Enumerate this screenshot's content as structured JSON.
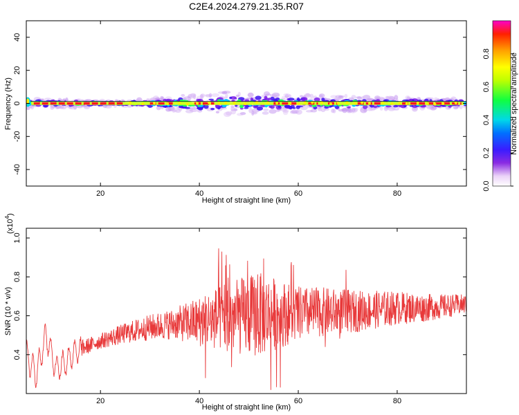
{
  "title": "C2E4.2024.279.21.35.R07",
  "colorbar": {
    "label": "Normalized spectral amplitude",
    "ticks": [
      "0.0",
      "0.2",
      "0.4",
      "0.6",
      "0.8"
    ],
    "tick_values": [
      0.0,
      0.2,
      0.4,
      0.6,
      0.8
    ],
    "range": [
      0,
      1
    ]
  },
  "chart_data": [
    {
      "type": "heatmap",
      "xlabel": "Height of straight line (km)",
      "ylabel": "Frequency (Hz)",
      "xlim": [
        5,
        94
      ],
      "ylim": [
        -50,
        50
      ],
      "xticks": [
        20,
        40,
        60,
        80
      ],
      "xtick_labels": [
        "20",
        "40",
        "60",
        "80"
      ],
      "yticks": [
        -40,
        -20,
        0,
        20,
        40
      ],
      "ytick_labels": [
        "-40",
        "-20",
        "0",
        "20",
        "40"
      ],
      "ridge_frequency_hz": 0,
      "spread_profile": [
        {
          "x": 5,
          "spread": 2.5
        },
        {
          "x": 25,
          "spread": 1.0
        },
        {
          "x": 35,
          "spread": 3.5
        },
        {
          "x": 45,
          "spread": 5.5
        },
        {
          "x": 55,
          "spread": 4.5
        },
        {
          "x": 70,
          "spread": 3.5
        },
        {
          "x": 94,
          "spread": 2.0
        }
      ]
    },
    {
      "type": "line",
      "xlabel": "Height of straight line (km)",
      "ylabel": "SNR (10 * v/v)",
      "scale_label": "(x10",
      "scale_exp": "4",
      "scale_close": ")",
      "xlim": [
        5,
        94
      ],
      "ylim": [
        0.2,
        1.05
      ],
      "xticks": [
        20,
        40,
        60,
        80
      ],
      "xtick_labels": [
        "20",
        "40",
        "60",
        "80"
      ],
      "yticks": [
        0.4,
        0.6,
        0.8,
        1.0
      ],
      "ytick_labels": [
        "0.4",
        "0.6",
        "0.8",
        "1.0"
      ],
      "series": [
        {
          "color": "#e8393a",
          "trend": [
            {
              "x": 5,
              "y": 0.4
            },
            {
              "x": 7,
              "y": 0.3
            },
            {
              "x": 9,
              "y": 0.5
            },
            {
              "x": 11,
              "y": 0.33
            },
            {
              "x": 13,
              "y": 0.36
            },
            {
              "x": 15,
              "y": 0.42
            },
            {
              "x": 20,
              "y": 0.47
            },
            {
              "x": 25,
              "y": 0.51
            },
            {
              "x": 30,
              "y": 0.54
            },
            {
              "x": 35,
              "y": 0.56
            },
            {
              "x": 40,
              "y": 0.57
            },
            {
              "x": 45,
              "y": 0.59
            },
            {
              "x": 50,
              "y": 0.6
            },
            {
              "x": 55,
              "y": 0.61
            },
            {
              "x": 60,
              "y": 0.61
            },
            {
              "x": 65,
              "y": 0.62
            },
            {
              "x": 70,
              "y": 0.62
            },
            {
              "x": 75,
              "y": 0.63
            },
            {
              "x": 80,
              "y": 0.64
            },
            {
              "x": 85,
              "y": 0.64
            },
            {
              "x": 90,
              "y": 0.65
            },
            {
              "x": 94,
              "y": 0.66
            }
          ],
          "noise_amplitude": [
            {
              "x": 5,
              "a": 0.05
            },
            {
              "x": 20,
              "a": 0.04
            },
            {
              "x": 35,
              "a": 0.08
            },
            {
              "x": 45,
              "a": 0.18
            },
            {
              "x": 52,
              "a": 0.22
            },
            {
              "x": 60,
              "a": 0.14
            },
            {
              "x": 75,
              "a": 0.1
            },
            {
              "x": 94,
              "a": 0.05
            }
          ]
        }
      ]
    }
  ]
}
